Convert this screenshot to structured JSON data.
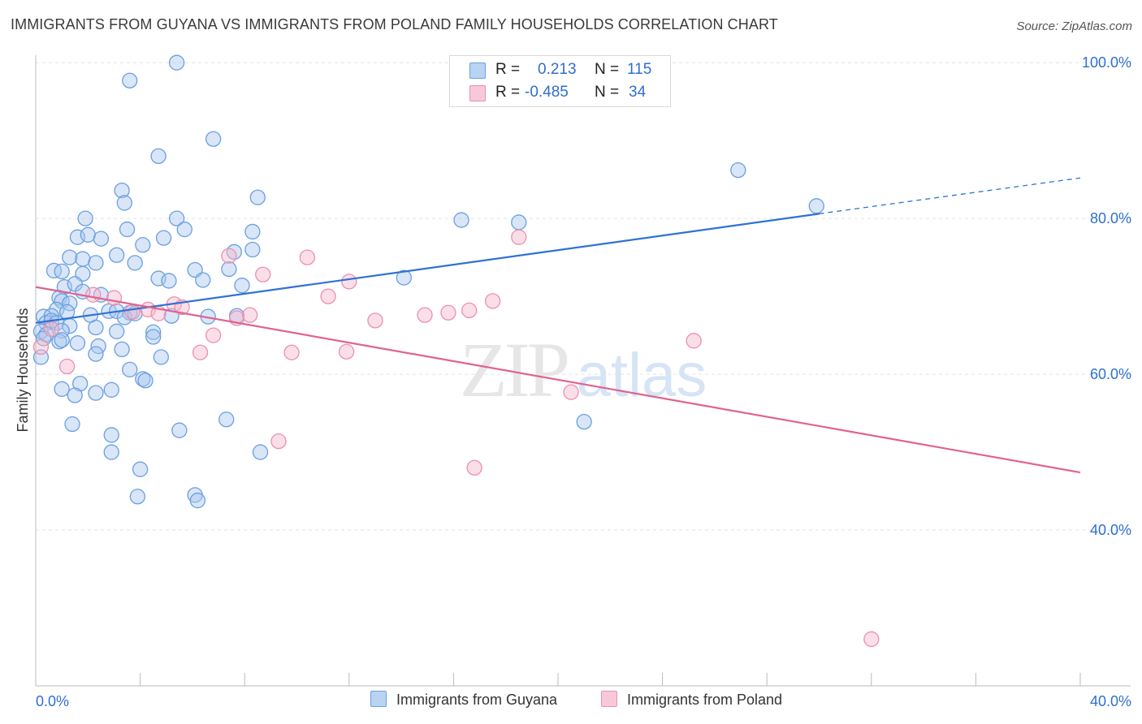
{
  "title": "IMMIGRANTS FROM GUYANA VS IMMIGRANTS FROM POLAND FAMILY HOUSEHOLDS CORRELATION CHART",
  "source": "Source: ZipAtlas.com",
  "watermark": {
    "zip": "ZIP",
    "atlas": "atlas"
  },
  "legend": {
    "r_label": "R =",
    "n_label": "N =",
    "rows": [
      {
        "r": "0.213",
        "n": "115"
      },
      {
        "r": "-0.485",
        "n": "34"
      }
    ]
  },
  "colors": {
    "guyana_fill": "#a9c8f0",
    "guyana_stroke": "#6a9fe0",
    "guyana_line": "#2f72d2",
    "poland_fill": "#f6b9cc",
    "poland_stroke": "#ec8fae",
    "poland_line": "#e0628f",
    "axis_text": "#2f6fcf",
    "grid": "#e3e3e3"
  },
  "chart_data": {
    "type": "scatter",
    "title": "IMMIGRANTS FROM GUYANA VS IMMIGRANTS FROM POLAND FAMILY HOUSEHOLDS CORRELATION CHART",
    "xlabel": "",
    "ylabel": "Family Households",
    "xlim": [
      0,
      40
    ],
    "ylim": [
      20,
      102
    ],
    "x_tick_labels": [
      {
        "value": 0,
        "label": "0.0%"
      },
      {
        "value": 40,
        "label": "40.0%"
      }
    ],
    "y_tick_labels": [
      {
        "value": 100,
        "label": "100.0%"
      },
      {
        "value": 80,
        "label": "80.0%"
      },
      {
        "value": 60,
        "label": "60.0%"
      },
      {
        "value": 40,
        "label": "40.0%"
      }
    ],
    "y_gridlines": [
      100,
      80,
      60,
      40
    ],
    "legend_position": "bottom-center",
    "series": [
      {
        "name": "Immigrants from Guyana",
        "r": 0.213,
        "n": 115,
        "trend": {
          "x0": 0,
          "y0": 66.6,
          "x1": 30.0,
          "y1": 80.6,
          "dashed_to_x": 40,
          "dashed_to_y": 85.2
        },
        "points": [
          [
            5.4,
            100.0
          ],
          [
            3.6,
            97.7
          ],
          [
            6.8,
            90.2
          ],
          [
            4.7,
            88.0
          ],
          [
            26.9,
            86.2
          ],
          [
            29.9,
            81.6
          ],
          [
            3.3,
            83.6
          ],
          [
            3.4,
            82.0
          ],
          [
            8.5,
            82.7
          ],
          [
            1.9,
            80.0
          ],
          [
            5.4,
            80.0
          ],
          [
            16.3,
            79.8
          ],
          [
            18.5,
            79.5
          ],
          [
            3.5,
            78.6
          ],
          [
            5.7,
            78.6
          ],
          [
            8.3,
            78.3
          ],
          [
            1.6,
            77.6
          ],
          [
            2.0,
            77.9
          ],
          [
            2.5,
            77.4
          ],
          [
            4.1,
            76.6
          ],
          [
            4.9,
            77.5
          ],
          [
            7.6,
            75.7
          ],
          [
            8.3,
            76.0
          ],
          [
            1.3,
            75.0
          ],
          [
            1.8,
            74.8
          ],
          [
            3.1,
            75.3
          ],
          [
            2.3,
            74.3
          ],
          [
            3.8,
            74.3
          ],
          [
            0.7,
            73.3
          ],
          [
            1.0,
            73.2
          ],
          [
            6.1,
            73.4
          ],
          [
            7.4,
            73.5
          ],
          [
            1.8,
            72.9
          ],
          [
            4.7,
            72.3
          ],
          [
            5.1,
            72.0
          ],
          [
            6.4,
            72.1
          ],
          [
            14.1,
            72.4
          ],
          [
            1.1,
            71.2
          ],
          [
            1.5,
            71.6
          ],
          [
            1.8,
            70.6
          ],
          [
            7.9,
            71.4
          ],
          [
            2.5,
            70.2
          ],
          [
            0.9,
            69.8
          ],
          [
            1.0,
            69.4
          ],
          [
            1.3,
            69.1
          ],
          [
            0.8,
            68.3
          ],
          [
            1.2,
            68.0
          ],
          [
            2.1,
            67.6
          ],
          [
            2.8,
            68.1
          ],
          [
            3.1,
            68.1
          ],
          [
            3.6,
            67.9
          ],
          [
            0.3,
            67.4
          ],
          [
            0.6,
            67.5
          ],
          [
            3.4,
            67.3
          ],
          [
            3.8,
            67.8
          ],
          [
            5.2,
            67.5
          ],
          [
            6.6,
            67.4
          ],
          [
            7.7,
            67.5
          ],
          [
            0.4,
            66.6
          ],
          [
            0.6,
            66.9
          ],
          [
            0.8,
            66.6
          ],
          [
            1.3,
            66.2
          ],
          [
            2.3,
            66.0
          ],
          [
            0.2,
            65.5
          ],
          [
            0.4,
            65.1
          ],
          [
            1.0,
            65.6
          ],
          [
            3.1,
            65.5
          ],
          [
            4.5,
            65.4
          ],
          [
            0.3,
            64.6
          ],
          [
            0.9,
            64.2
          ],
          [
            1.0,
            64.4
          ],
          [
            1.6,
            64.0
          ],
          [
            2.4,
            63.6
          ],
          [
            3.3,
            63.2
          ],
          [
            4.5,
            64.8
          ],
          [
            2.3,
            62.6
          ],
          [
            4.8,
            62.2
          ],
          [
            0.2,
            62.2
          ],
          [
            3.6,
            60.6
          ],
          [
            4.1,
            59.4
          ],
          [
            4.2,
            59.2
          ],
          [
            1.7,
            58.8
          ],
          [
            1.0,
            58.1
          ],
          [
            1.5,
            57.3
          ],
          [
            2.3,
            57.6
          ],
          [
            2.9,
            58.0
          ],
          [
            21.0,
            53.9
          ],
          [
            7.3,
            54.2
          ],
          [
            1.4,
            53.6
          ],
          [
            5.5,
            52.8
          ],
          [
            2.9,
            52.2
          ],
          [
            2.9,
            50.0
          ],
          [
            8.6,
            50.0
          ],
          [
            4.0,
            47.8
          ],
          [
            3.9,
            44.3
          ],
          [
            6.1,
            44.5
          ],
          [
            6.2,
            43.8
          ]
        ]
      },
      {
        "name": "Immigrants from Poland",
        "r": -0.485,
        "n": 34,
        "trend": {
          "x0": 0,
          "y0": 71.2,
          "x1": 40,
          "y1": 47.4
        },
        "points": [
          [
            0.2,
            63.5
          ],
          [
            0.6,
            65.8
          ],
          [
            1.2,
            61.0
          ],
          [
            2.2,
            70.2
          ],
          [
            3.0,
            69.8
          ],
          [
            3.7,
            68.0
          ],
          [
            4.3,
            68.3
          ],
          [
            4.7,
            67.8
          ],
          [
            5.3,
            69.0
          ],
          [
            5.6,
            68.6
          ],
          [
            6.3,
            62.8
          ],
          [
            6.8,
            65.0
          ],
          [
            7.4,
            75.2
          ],
          [
            7.7,
            67.2
          ],
          [
            8.2,
            67.6
          ],
          [
            8.7,
            72.8
          ],
          [
            9.3,
            51.4
          ],
          [
            9.8,
            62.8
          ],
          [
            10.4,
            75.0
          ],
          [
            11.2,
            70.0
          ],
          [
            11.9,
            62.9
          ],
          [
            12.0,
            71.9
          ],
          [
            13.0,
            66.9
          ],
          [
            14.9,
            67.6
          ],
          [
            15.8,
            67.9
          ],
          [
            16.6,
            68.2
          ],
          [
            16.8,
            48.0
          ],
          [
            17.5,
            69.4
          ],
          [
            18.5,
            77.6
          ],
          [
            20.5,
            57.7
          ],
          [
            25.2,
            64.3
          ],
          [
            32.0,
            26.0
          ]
        ]
      }
    ]
  },
  "bottom_legend": {
    "guyana": "Immigrants from Guyana",
    "poland": "Immigrants from Poland"
  }
}
